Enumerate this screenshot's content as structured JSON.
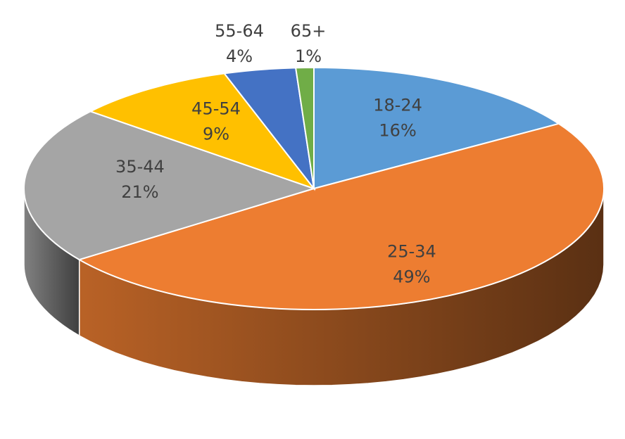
{
  "chart_data": {
    "type": "pie",
    "style": "3d",
    "title": "",
    "categories": [
      "18-24",
      "25-34",
      "35-44",
      "45-54",
      "55-64",
      "65+"
    ],
    "values": [
      16,
      49,
      21,
      9,
      4,
      1
    ],
    "labels": [
      "16%",
      "49%",
      "21%",
      "9%",
      "4%",
      "1%"
    ],
    "colors": [
      "#5B9BD5",
      "#ED7D31",
      "#A5A5A5",
      "#FFC000",
      "#4472C4",
      "#70AD47"
    ],
    "start": "12 o'clock",
    "direction": "clockwise",
    "legend": "none"
  }
}
